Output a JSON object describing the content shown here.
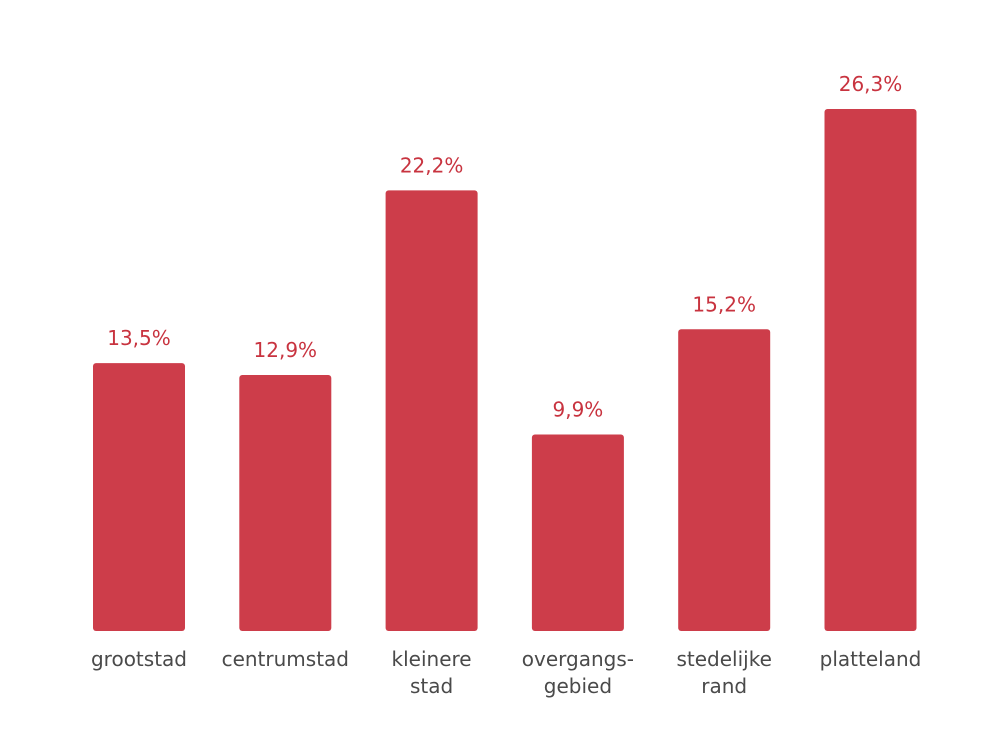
{
  "colors": {
    "bar": "#cd3d4a",
    "value_label": "#c8333f",
    "category_label": "#4a4a4a",
    "background": "#ffffff"
  },
  "chart_data": {
    "type": "bar",
    "categories": [
      [
        "grootstad"
      ],
      [
        "centrumstad"
      ],
      [
        "kleinere",
        "stad"
      ],
      [
        "overgangs-",
        "gebied"
      ],
      [
        "stedelijke",
        "rand"
      ],
      [
        "platteland"
      ]
    ],
    "values": [
      13.5,
      12.9,
      22.2,
      9.9,
      15.2,
      26.3
    ],
    "value_labels": [
      "13,5%",
      "12,9%",
      "22,2%",
      "9,9%",
      "15,2%",
      "26,3%"
    ],
    "unit": "%",
    "title": "",
    "xlabel": "",
    "ylabel": "",
    "ylim": [
      0,
      26.3
    ],
    "grid": false,
    "legend": "none"
  }
}
